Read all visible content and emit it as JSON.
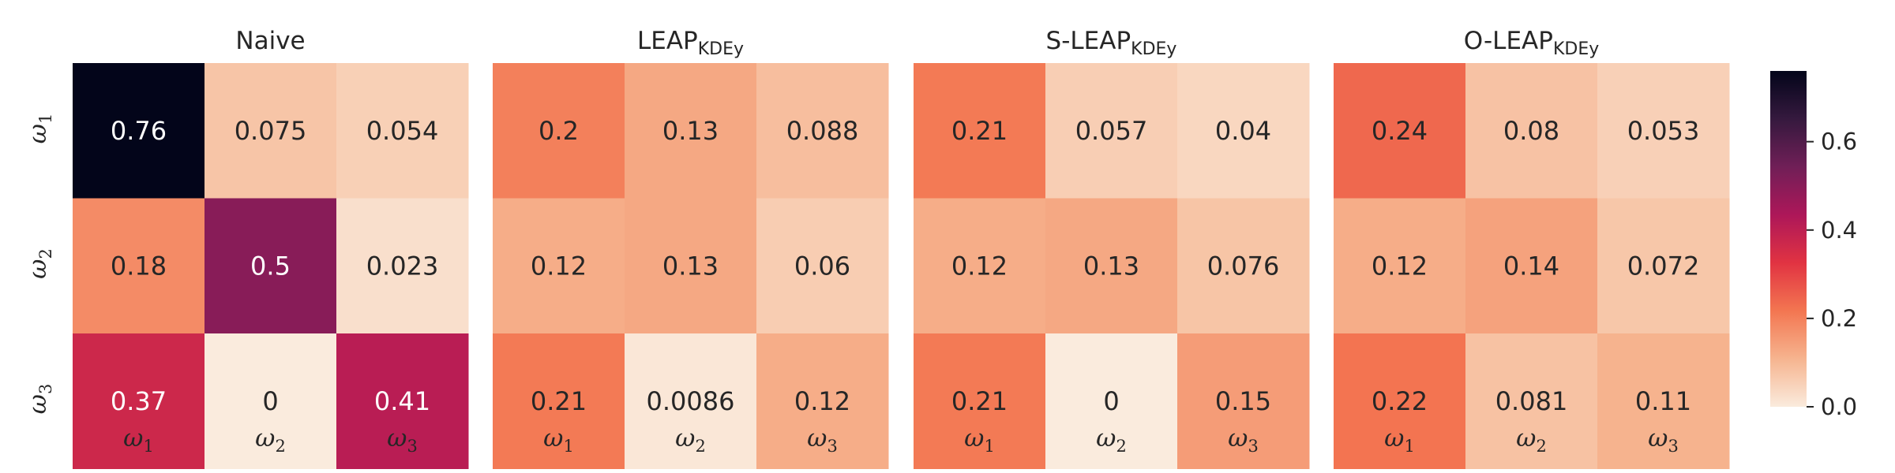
{
  "chart_data": [
    {
      "type": "heatmap",
      "title": {
        "main": "Naive",
        "sub": ""
      },
      "rows": [
        "ω1",
        "ω2",
        "ω3"
      ],
      "cols": [
        "ω1",
        "ω2",
        "ω3"
      ],
      "values": [
        [
          0.76,
          0.075,
          0.054
        ],
        [
          0.18,
          0.5,
          0.023
        ],
        [
          0.37,
          0,
          0.41
        ]
      ],
      "labels": [
        [
          "0.76",
          "0.075",
          "0.054"
        ],
        [
          "0.18",
          "0.5",
          "0.023"
        ],
        [
          "0.37",
          "0",
          "0.41"
        ]
      ]
    },
    {
      "type": "heatmap",
      "title": {
        "main": "LEAP",
        "sub": "KDEy"
      },
      "rows": [
        "ω1",
        "ω2",
        "ω3"
      ],
      "cols": [
        "ω1",
        "ω2",
        "ω3"
      ],
      "values": [
        [
          0.2,
          0.13,
          0.088
        ],
        [
          0.12,
          0.13,
          0.06
        ],
        [
          0.21,
          0.0086,
          0.12
        ]
      ],
      "labels": [
        [
          "0.2",
          "0.13",
          "0.088"
        ],
        [
          "0.12",
          "0.13",
          "0.06"
        ],
        [
          "0.21",
          "0.0086",
          "0.12"
        ]
      ]
    },
    {
      "type": "heatmap",
      "title": {
        "main": "S-LEAP",
        "sub": "KDEy"
      },
      "rows": [
        "ω1",
        "ω2",
        "ω3"
      ],
      "cols": [
        "ω1",
        "ω2",
        "ω3"
      ],
      "values": [
        [
          0.21,
          0.057,
          0.04
        ],
        [
          0.12,
          0.13,
          0.076
        ],
        [
          0.21,
          0,
          0.15
        ]
      ],
      "labels": [
        [
          "0.21",
          "0.057",
          "0.04"
        ],
        [
          "0.12",
          "0.13",
          "0.076"
        ],
        [
          "0.21",
          "0",
          "0.15"
        ]
      ]
    },
    {
      "type": "heatmap",
      "title": {
        "main": "O-LEAP",
        "sub": "KDEy"
      },
      "rows": [
        "ω1",
        "ω2",
        "ω3"
      ],
      "cols": [
        "ω1",
        "ω2",
        "ω3"
      ],
      "values": [
        [
          0.24,
          0.08,
          0.053
        ],
        [
          0.12,
          0.14,
          0.072
        ],
        [
          0.22,
          0.081,
          0.11
        ]
      ],
      "labels": [
        [
          "0.24",
          "0.08",
          "0.053"
        ],
        [
          "0.12",
          "0.14",
          "0.072"
        ],
        [
          "0.22",
          "0.081",
          "0.11"
        ]
      ]
    }
  ],
  "colorbar": {
    "range": [
      0,
      0.76
    ],
    "ticks": [
      0.0,
      0.2,
      0.4,
      0.6
    ],
    "tick_labels": [
      "0.0",
      "0.2",
      "0.4",
      "0.6"
    ],
    "colormap": "rocket_r",
    "colormap_stops": [
      "#faebdd",
      "#f6b48f",
      "#f37651",
      "#e13342",
      "#ad1759",
      "#701f57",
      "#35193e",
      "#03051a"
    ]
  },
  "text_colors": {
    "light": "#ffffff",
    "dark": "#262626"
  }
}
